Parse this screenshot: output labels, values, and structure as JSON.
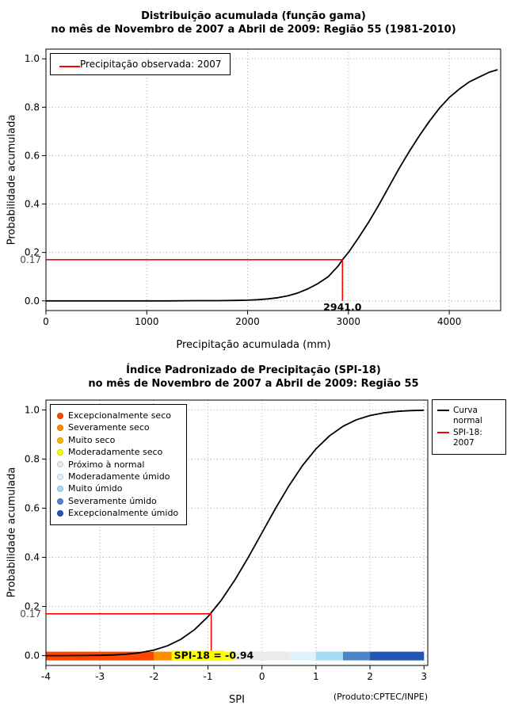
{
  "page": {
    "background": "#ffffff"
  },
  "product_credit": "(Produto:CPTEC/INPE)",
  "colors": {
    "reference_line": "#FF0000",
    "curve": "#000000",
    "grid": "#a8a8a8",
    "highlight": "#FFFF00"
  },
  "chart_data": [
    {
      "type": "line",
      "title": "Distribuição acumulada (função gama)",
      "subtitle": "no mês de Novembro de 2007 a Abril de 2009: Região 55 (1981-2010)",
      "xlabel": "Precipitação acumulada (mm)",
      "ylabel": "Probabilidade acumulada",
      "xlim": [
        0,
        4510
      ],
      "ylim": [
        0,
        1
      ],
      "grid": true,
      "legend_position": "top-left",
      "xticks": [
        0,
        1000,
        2000,
        3000,
        4000
      ],
      "yticks": [
        "0.0",
        "0.2",
        "0.4",
        "0.6",
        "0.8",
        "1.0"
      ],
      "legend": [
        {
          "label": "Precipitação observada: 2007",
          "color": "#FF0000",
          "sample": "line"
        }
      ],
      "series": [
        {
          "name": "Distribuição gama acumulada",
          "color": "#000000",
          "x": [
            0,
            300,
            600,
            900,
            1200,
            1500,
            1700,
            1900,
            2000,
            2100,
            2200,
            2300,
            2400,
            2500,
            2600,
            2700,
            2800,
            2900,
            2941,
            3000,
            3100,
            3200,
            3300,
            3400,
            3500,
            3600,
            3700,
            3800,
            3900,
            4000,
            4100,
            4200,
            4300,
            4400,
            4480
          ],
          "y": [
            0,
            0,
            0,
            0,
            0,
            0.001,
            0.001,
            0.002,
            0.003,
            0.005,
            0.008,
            0.013,
            0.021,
            0.033,
            0.05,
            0.072,
            0.1,
            0.145,
            0.17,
            0.2,
            0.26,
            0.325,
            0.395,
            0.47,
            0.545,
            0.615,
            0.68,
            0.74,
            0.795,
            0.84,
            0.875,
            0.905,
            0.925,
            0.945,
            0.955
          ]
        }
      ],
      "reference": {
        "color": "#FF0000",
        "prob": 0.17,
        "prob_label": "0.17",
        "x_value": 2941.0,
        "x_label": "2941.0"
      }
    },
    {
      "type": "line",
      "title": "Índice Padronizado de Precipitação (SPI-18)",
      "subtitle": "no mês de Novembro de 2007 a Abril de 2009: Região 55",
      "xlabel": "SPI",
      "ylabel": "Probabilidade acumulada",
      "xlim": [
        -4,
        3
      ],
      "ylim": [
        0,
        1
      ],
      "grid": true,
      "xticks": [
        -4,
        -3,
        -2,
        -1,
        0,
        1,
        2,
        3
      ],
      "yticks": [
        "0.0",
        "0.2",
        "0.4",
        "0.6",
        "0.8",
        "1.0"
      ],
      "categories_legend": [
        {
          "label": "Excepcionalmente seco",
          "color": "#FF4500"
        },
        {
          "label": "Severamente seco",
          "color": "#FF8C00"
        },
        {
          "label": "Muito seco",
          "color": "#FFB400"
        },
        {
          "label": "Moderadamente seco",
          "color": "#FFFF00"
        },
        {
          "label": "Próximo à normal",
          "color": "#EBEBEB"
        },
        {
          "label": "Moderadamente úmido",
          "color": "#DDF2FC"
        },
        {
          "label": "Muito úmido",
          "color": "#A4DCF5"
        },
        {
          "label": "Severamente úmido",
          "color": "#4A86C8"
        },
        {
          "label": "Excepcionalmente úmido",
          "color": "#2255B4"
        }
      ],
      "curve_legend": [
        {
          "label": "Curva normal",
          "color": "#000000",
          "sample": "line"
        },
        {
          "label": "SPI-18: 2007",
          "color": "#FF0000",
          "sample": "line"
        }
      ],
      "colorbar": [
        {
          "from": -4,
          "to": -2,
          "color": "#FF4500"
        },
        {
          "from": -2,
          "to": -1.5,
          "color": "#FF8C00"
        },
        {
          "from": -1.5,
          "to": -1,
          "color": "#FFB400"
        },
        {
          "from": -1,
          "to": -0.5,
          "color": "#FFFF00"
        },
        {
          "from": -0.5,
          "to": 0.5,
          "color": "#EBEBEB"
        },
        {
          "from": 0.5,
          "to": 1,
          "color": "#DDF2FC"
        },
        {
          "from": 1,
          "to": 1.5,
          "color": "#A4DCF5"
        },
        {
          "from": 1.5,
          "to": 2,
          "color": "#4A86C8"
        },
        {
          "from": 2,
          "to": 3,
          "color": "#2255B4"
        }
      ],
      "series": [
        {
          "name": "Curva normal",
          "color": "#000000",
          "x": [
            -4,
            -3.75,
            -3.5,
            -3.25,
            -3,
            -2.75,
            -2.5,
            -2.25,
            -2,
            -1.75,
            -1.5,
            -1.25,
            -1,
            -0.75,
            -0.5,
            -0.25,
            0,
            0.25,
            0.5,
            0.75,
            1,
            1.25,
            1.5,
            1.75,
            2,
            2.25,
            2.5,
            2.75,
            3
          ],
          "y": [
            0.0,
            0.0001,
            0.0002,
            0.0006,
            0.0013,
            0.003,
            0.0062,
            0.0122,
            0.0228,
            0.0401,
            0.0668,
            0.1056,
            0.1587,
            0.2266,
            0.3085,
            0.4013,
            0.5,
            0.5987,
            0.6915,
            0.7734,
            0.8413,
            0.8944,
            0.9332,
            0.9599,
            0.9772,
            0.9878,
            0.9938,
            0.997,
            0.9987
          ]
        }
      ],
      "reference": {
        "color": "#FF0000",
        "prob": 0.17,
        "prob_label": "0.17",
        "x_value": -0.94,
        "label_prefix": "SPI-18 = ",
        "value_label": "-0.94",
        "highlight": "#FFFF00"
      }
    }
  ]
}
